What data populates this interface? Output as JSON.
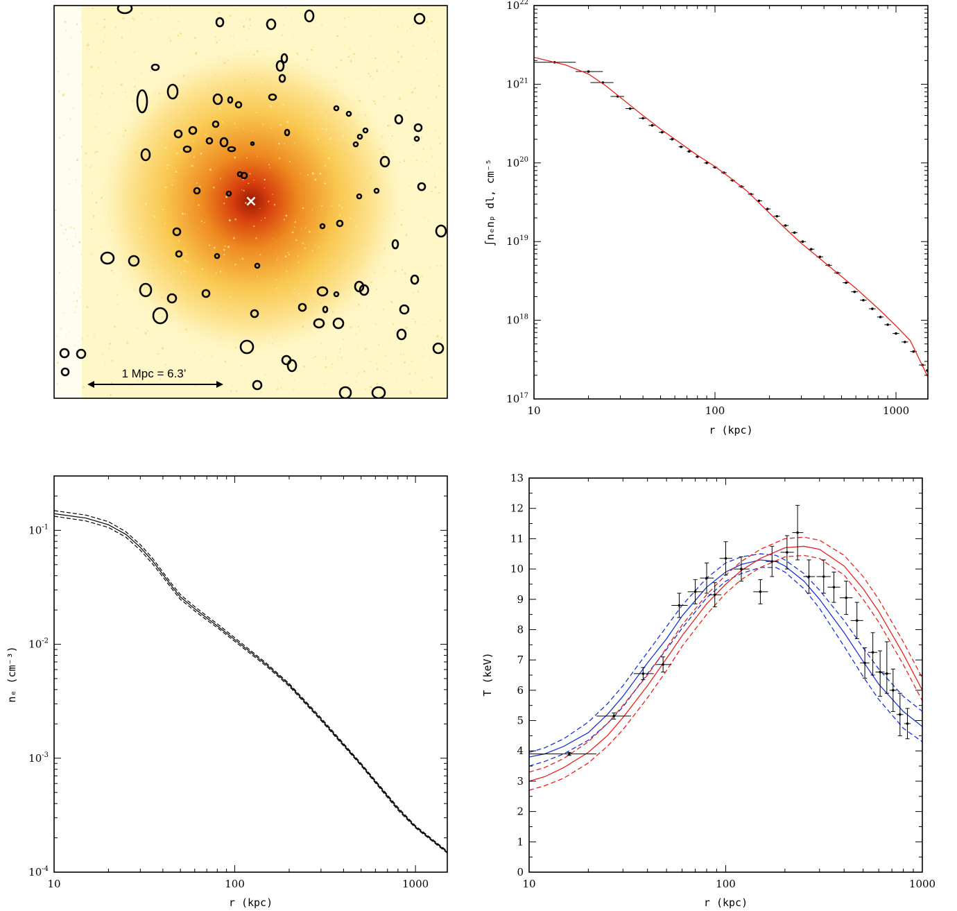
{
  "image_panel": {
    "scale_label": "1 Mpc = 6.3’",
    "center_marker": "×",
    "background_color": "#fff7c8",
    "core_color": "#e05010"
  },
  "chart_data": [
    {
      "id": "emission",
      "type": "scatter",
      "xscale": "log",
      "yscale": "log",
      "xlim": [
        10,
        1500
      ],
      "ylim": [
        1e+17,
        1e+22
      ],
      "xlabel": "r (kpc)",
      "ylabel": "∫nₑnₚ dl, cm⁻⁵",
      "xticks": [
        "10",
        "100",
        "1000"
      ],
      "yticks_exp": [
        "17",
        "18",
        "19",
        "20",
        "21",
        "22"
      ],
      "points": [
        {
          "x": 13,
          "y": 1.9e+21,
          "xlo": 10,
          "xhi": 17
        },
        {
          "x": 20,
          "y": 1.45e+21,
          "xlo": 17,
          "xhi": 24
        },
        {
          "x": 24,
          "y": 1.05e+21,
          "xlo": 20.5,
          "xhi": 27.5
        },
        {
          "x": 29,
          "y": 7e+20,
          "xlo": 26.5,
          "xhi": 31.5
        },
        {
          "x": 34,
          "y": 4.9e+20,
          "xlo": 32,
          "xhi": 36
        },
        {
          "x": 40,
          "y": 3.7e+20,
          "xlo": 38,
          "xhi": 42
        },
        {
          "x": 45,
          "y": 3e+20,
          "xlo": 43,
          "xhi": 47
        },
        {
          "x": 51,
          "y": 2.45e+20,
          "xlo": 49,
          "xhi": 53
        },
        {
          "x": 58,
          "y": 2e+20,
          "xlo": 56,
          "xhi": 60
        },
        {
          "x": 65,
          "y": 1.6e+20,
          "xlo": 63,
          "xhi": 67
        },
        {
          "x": 72,
          "y": 1.4e+20,
          "xlo": 70,
          "xhi": 74
        },
        {
          "x": 80,
          "y": 1.2e+20,
          "xlo": 78,
          "xhi": 82.5
        },
        {
          "x": 90,
          "y": 1e+20,
          "xlo": 87,
          "xhi": 93
        },
        {
          "x": 100,
          "y": 8.8e+19,
          "xlo": 97,
          "xhi": 103
        },
        {
          "x": 112,
          "y": 7.5e+19,
          "xlo": 108,
          "xhi": 116
        },
        {
          "x": 125,
          "y": 6e+19,
          "xlo": 121,
          "xhi": 129
        },
        {
          "x": 140,
          "y": 5e+19,
          "xlo": 135,
          "xhi": 145
        },
        {
          "x": 158,
          "y": 4e+19,
          "xlo": 152,
          "xhi": 164
        },
        {
          "x": 175,
          "y": 3.3e+19,
          "xlo": 169,
          "xhi": 182
        },
        {
          "x": 195,
          "y": 2.6e+19,
          "xlo": 188,
          "xhi": 203
        },
        {
          "x": 220,
          "y": 2.1e+19,
          "xlo": 211,
          "xhi": 229
        },
        {
          "x": 245,
          "y": 1.6e+19,
          "xlo": 235,
          "xhi": 255
        },
        {
          "x": 275,
          "y": 1.3e+19,
          "xlo": 264,
          "xhi": 286
        },
        {
          "x": 305,
          "y": 1e+19,
          "xlo": 293,
          "xhi": 318
        },
        {
          "x": 340,
          "y": 8e+18,
          "xlo": 326,
          "xhi": 354
        },
        {
          "x": 380,
          "y": 6.4e+18,
          "xlo": 364,
          "xhi": 396
        },
        {
          "x": 425,
          "y": 5e+18,
          "xlo": 407,
          "xhi": 443
        },
        {
          "x": 475,
          "y": 4e+18,
          "xlo": 455,
          "xhi": 495
        },
        {
          "x": 530,
          "y": 3e+18,
          "xlo": 508,
          "xhi": 552
        },
        {
          "x": 590,
          "y": 2.3e+18,
          "xlo": 565,
          "xhi": 615
        },
        {
          "x": 660,
          "y": 1.8e+18,
          "xlo": 632,
          "xhi": 688
        },
        {
          "x": 740,
          "y": 1.4e+18,
          "xlo": 709,
          "xhi": 771
        },
        {
          "x": 820,
          "y": 1.1e+18,
          "xlo": 786,
          "xhi": 854
        },
        {
          "x": 900,
          "y": 8.8e+17,
          "xlo": 862,
          "xhi": 938
        },
        {
          "x": 1000,
          "y": 6.8e+17,
          "xlo": 958,
          "xhi": 1042
        },
        {
          "x": 1120,
          "y": 5.3e+17,
          "xlo": 1073,
          "xhi": 1167
        },
        {
          "x": 1250,
          "y": 4e+17,
          "xlo": 1197,
          "xhi": 1303
        },
        {
          "x": 1400,
          "y": 2.7e+17,
          "xlo": 1340,
          "xhi": 1460
        },
        {
          "x": 1490,
          "y": 2.3e+17,
          "xlo": 1460,
          "xhi": 1500
        }
      ],
      "model": {
        "color": "#e8201c",
        "x": [
          10,
          15,
          20,
          25,
          30,
          40,
          50,
          60,
          80,
          100,
          120,
          150,
          200,
          250,
          300,
          400,
          500,
          600,
          800,
          1000,
          1200,
          1500
        ],
        "y": [
          2.2e+21,
          1.75e+21,
          1.35e+21,
          9.5e+20,
          6.8e+20,
          4e+20,
          2.7e+20,
          2e+20,
          1.25e+20,
          9e+19,
          6.6e+19,
          4.4e+19,
          2.3e+19,
          1.4e+19,
          9.5e+18,
          5.5e+18,
          3.6e+18,
          2.55e+18,
          1.4e+18,
          8.5e+17,
          5.5e+17,
          1.9e+17
        ]
      }
    },
    {
      "id": "density",
      "type": "line",
      "xscale": "log",
      "yscale": "log",
      "xlim": [
        10,
        1500
      ],
      "ylim": [
        0.0001,
        0.3
      ],
      "xlabel": "r (kpc)",
      "ylabel": "nₑ (cm⁻³)",
      "xticks": [
        "10",
        "100",
        "1000"
      ],
      "yticks_exp": [
        "-1",
        "-2",
        "-3",
        "-4"
      ],
      "series": [
        {
          "style": "solid",
          "x": [
            10,
            15,
            20,
            25,
            30,
            35,
            40,
            45,
            50,
            55,
            60,
            70,
            80,
            100,
            150,
            200,
            300,
            500,
            800,
            1000,
            1500
          ],
          "y": [
            0.14,
            0.128,
            0.112,
            0.092,
            0.071,
            0.054,
            0.041,
            0.032,
            0.026,
            0.023,
            0.0205,
            0.017,
            0.0145,
            0.011,
            0.0066,
            0.0044,
            0.0022,
            0.00088,
            0.00036,
            0.00025,
            0.00015
          ]
        },
        {
          "style": "dashed",
          "x": [
            10,
            15,
            20,
            25,
            30,
            35,
            40,
            45,
            50,
            55,
            60,
            70,
            80,
            100,
            150,
            200,
            300,
            500,
            800,
            1000,
            1500
          ],
          "y": [
            0.149,
            0.136,
            0.119,
            0.097,
            0.075,
            0.057,
            0.043,
            0.0335,
            0.0273,
            0.024,
            0.0214,
            0.0177,
            0.0151,
            0.0114,
            0.0068,
            0.00452,
            0.00226,
            0.0009,
            0.00037,
            0.000255,
            0.000153
          ]
        },
        {
          "style": "dashed",
          "x": [
            10,
            15,
            20,
            25,
            30,
            35,
            40,
            45,
            50,
            55,
            60,
            70,
            80,
            100,
            150,
            200,
            300,
            500,
            800,
            1000,
            1500
          ],
          "y": [
            0.133,
            0.121,
            0.106,
            0.087,
            0.067,
            0.051,
            0.039,
            0.0305,
            0.0248,
            0.022,
            0.0196,
            0.0163,
            0.014,
            0.0106,
            0.0064,
            0.00428,
            0.00214,
            0.00086,
            0.00035,
            0.000245,
            0.000147
          ]
        }
      ]
    },
    {
      "id": "temperature",
      "type": "scatter",
      "xscale": "log",
      "yscale": "linear",
      "xlim": [
        10,
        1000
      ],
      "ylim": [
        0,
        13
      ],
      "xlabel": "r (kpc)",
      "ylabel": "T (keV)",
      "xticks": [
        "10",
        "100",
        "1000"
      ],
      "yticks": [
        "0",
        "1",
        "2",
        "3",
        "4",
        "5",
        "6",
        "7",
        "8",
        "9",
        "10",
        "11",
        "12",
        "13"
      ],
      "points": [
        {
          "x": 16,
          "y": 3.9,
          "xlo": 10,
          "xhi": 22,
          "ylo": 3.85,
          "yhi": 3.95
        },
        {
          "x": 27,
          "y": 5.15,
          "xlo": 22,
          "xhi": 33,
          "ylo": 5.05,
          "yhi": 5.25
        },
        {
          "x": 38,
          "y": 6.55,
          "xlo": 34,
          "xhi": 43,
          "ylo": 6.35,
          "yhi": 6.75
        },
        {
          "x": 48,
          "y": 6.85,
          "xlo": 44,
          "xhi": 53,
          "ylo": 6.6,
          "yhi": 7.1
        },
        {
          "x": 58,
          "y": 8.8,
          "xlo": 53,
          "xhi": 64,
          "ylo": 8.4,
          "yhi": 9.2
        },
        {
          "x": 70,
          "y": 9.25,
          "xlo": 64,
          "xhi": 77,
          "ylo": 8.85,
          "yhi": 9.65
        },
        {
          "x": 80,
          "y": 9.7,
          "xlo": 74,
          "xhi": 87,
          "ylo": 9.2,
          "yhi": 10.2
        },
        {
          "x": 88,
          "y": 9.15,
          "xlo": 82,
          "xhi": 95,
          "ylo": 8.75,
          "yhi": 9.55
        },
        {
          "x": 100,
          "y": 10.35,
          "xlo": 93,
          "xhi": 108,
          "ylo": 9.8,
          "yhi": 10.9
        },
        {
          "x": 120,
          "y": 10.0,
          "xlo": 110,
          "xhi": 132,
          "ylo": 9.6,
          "yhi": 10.4
        },
        {
          "x": 150,
          "y": 9.25,
          "xlo": 138,
          "xhi": 164,
          "ylo": 8.85,
          "yhi": 9.65
        },
        {
          "x": 172,
          "y": 10.25,
          "xlo": 160,
          "xhi": 186,
          "ylo": 9.75,
          "yhi": 10.75
        },
        {
          "x": 205,
          "y": 10.55,
          "xlo": 190,
          "xhi": 222,
          "ylo": 10.0,
          "yhi": 11.1
        },
        {
          "x": 232,
          "y": 11.2,
          "xlo": 218,
          "xhi": 248,
          "ylo": 10.3,
          "yhi": 12.1
        },
        {
          "x": 265,
          "y": 9.75,
          "xlo": 248,
          "xhi": 284,
          "ylo": 9.2,
          "yhi": 10.3
        },
        {
          "x": 315,
          "y": 9.75,
          "xlo": 290,
          "xhi": 342,
          "ylo": 9.2,
          "yhi": 10.3
        },
        {
          "x": 355,
          "y": 9.4,
          "xlo": 330,
          "xhi": 382,
          "ylo": 8.9,
          "yhi": 9.9
        },
        {
          "x": 410,
          "y": 9.05,
          "xlo": 380,
          "xhi": 442,
          "ylo": 8.5,
          "yhi": 9.6
        },
        {
          "x": 465,
          "y": 8.3,
          "xlo": 432,
          "xhi": 500,
          "ylo": 7.7,
          "yhi": 8.9
        },
        {
          "x": 510,
          "y": 6.9,
          "xlo": 482,
          "xhi": 538,
          "ylo": 6.4,
          "yhi": 7.4
        },
        {
          "x": 560,
          "y": 7.25,
          "xlo": 530,
          "xhi": 590,
          "ylo": 6.5,
          "yhi": 7.9
        },
        {
          "x": 610,
          "y": 6.6,
          "xlo": 578,
          "xhi": 642,
          "ylo": 5.8,
          "yhi": 7.3
        },
        {
          "x": 660,
          "y": 6.55,
          "xlo": 628,
          "xhi": 692,
          "ylo": 5.9,
          "yhi": 7.6
        },
        {
          "x": 710,
          "y": 6.0,
          "xlo": 680,
          "xhi": 740,
          "ylo": 5.3,
          "yhi": 6.7
        },
        {
          "x": 770,
          "y": 5.2,
          "xlo": 740,
          "xhi": 800,
          "ylo": 4.5,
          "yhi": 5.9
        },
        {
          "x": 840,
          "y": 4.9,
          "xlo": 808,
          "xhi": 872,
          "ylo": 4.4,
          "yhi": 5.4
        }
      ],
      "models": [
        {
          "color": "#1830d8",
          "style": "solid",
          "x": [
            10,
            12,
            15,
            20,
            25,
            30,
            40,
            50,
            60,
            80,
            100,
            120,
            150,
            180,
            200,
            250,
            300,
            400,
            500,
            600,
            800,
            1000
          ],
          "y": [
            3.8,
            3.9,
            4.15,
            4.6,
            5.2,
            5.8,
            6.9,
            7.7,
            8.45,
            9.4,
            9.9,
            10.15,
            10.3,
            10.25,
            10.1,
            9.6,
            9.0,
            7.9,
            6.95,
            6.2,
            5.3,
            4.8
          ]
        },
        {
          "color": "#1830d8",
          "style": "dashed",
          "x": [
            10,
            12,
            15,
            20,
            25,
            30,
            40,
            50,
            60,
            80,
            100,
            120,
            150,
            180,
            200,
            250,
            300,
            400,
            500,
            600,
            800,
            1000
          ],
          "y": [
            3.95,
            4.1,
            4.4,
            4.95,
            5.55,
            6.15,
            7.25,
            8.1,
            8.8,
            9.7,
            10.2,
            10.4,
            10.5,
            10.45,
            10.3,
            9.85,
            9.3,
            8.3,
            7.4,
            6.7,
            5.8,
            5.3
          ]
        },
        {
          "color": "#1830d8",
          "style": "dashed",
          "x": [
            10,
            12,
            15,
            20,
            25,
            30,
            40,
            50,
            60,
            80,
            100,
            120,
            150,
            180,
            200,
            250,
            300,
            400,
            500,
            600,
            800,
            1000
          ],
          "y": [
            3.5,
            3.65,
            3.9,
            4.35,
            4.9,
            5.45,
            6.55,
            7.35,
            8.05,
            9.05,
            9.6,
            9.85,
            10.05,
            10.05,
            9.9,
            9.35,
            8.7,
            7.45,
            6.45,
            5.7,
            4.75,
            4.3
          ]
        },
        {
          "color": "#e8201c",
          "style": "solid",
          "x": [
            10,
            12,
            15,
            20,
            25,
            30,
            40,
            50,
            60,
            80,
            100,
            120,
            150,
            200,
            250,
            300,
            400,
            500,
            600,
            800,
            1000
          ],
          "y": [
            3.0,
            3.15,
            3.45,
            3.95,
            4.5,
            5.1,
            6.15,
            7.05,
            7.8,
            8.85,
            9.5,
            9.95,
            10.35,
            10.7,
            10.75,
            10.65,
            10.1,
            9.35,
            8.6,
            7.2,
            6.0
          ]
        },
        {
          "color": "#e8201c",
          "style": "dashed",
          "x": [
            10,
            12,
            15,
            20,
            25,
            30,
            40,
            50,
            60,
            80,
            100,
            120,
            150,
            200,
            250,
            300,
            400,
            500,
            600,
            800,
            1000
          ],
          "y": [
            3.3,
            3.45,
            3.75,
            4.3,
            4.9,
            5.5,
            6.5,
            7.4,
            8.15,
            9.15,
            9.8,
            10.25,
            10.65,
            11.0,
            11.05,
            10.95,
            10.45,
            9.75,
            9.0,
            7.6,
            6.4
          ]
        },
        {
          "color": "#e8201c",
          "style": "dashed",
          "x": [
            10,
            12,
            15,
            20,
            25,
            30,
            40,
            50,
            60,
            80,
            100,
            120,
            150,
            200,
            250,
            300,
            400,
            500,
            600,
            800,
            1000
          ],
          "y": [
            2.7,
            2.85,
            3.1,
            3.6,
            4.15,
            4.7,
            5.75,
            6.65,
            7.45,
            8.5,
            9.2,
            9.65,
            10.05,
            10.4,
            10.45,
            10.35,
            9.8,
            9.0,
            8.25,
            6.85,
            5.65
          ]
        }
      ]
    }
  ]
}
